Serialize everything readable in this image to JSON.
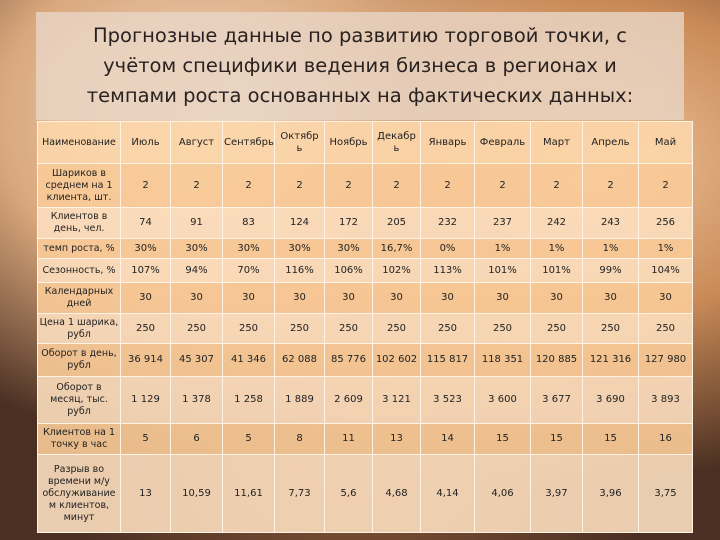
{
  "title": "Прогнозные данные по развитию торговой точки, с учётом специфики ведения бизнеса в регионах и темпами роста основанных на фактических данных:",
  "table": {
    "header": {
      "label": "Наименование",
      "months": [
        "Июль",
        "Август",
        "Сентябрь",
        "Октябр ь",
        "Ноябрь",
        "Декабр ь",
        "Январь",
        "Февраль",
        "Март",
        "Апрель",
        "Май"
      ]
    },
    "rows": [
      {
        "label": "Шариков в среднем на 1 клиента, шт.",
        "values": [
          "2",
          "2",
          "2",
          "2",
          "2",
          "2",
          "2",
          "2",
          "2",
          "2",
          "2"
        ]
      },
      {
        "label": "Клиентов в день, чел.",
        "values": [
          "74",
          "91",
          "83",
          "124",
          "172",
          "205",
          "232",
          "237",
          "242",
          "243",
          "256"
        ]
      },
      {
        "label": "темп роста, %",
        "values": [
          "30%",
          "30%",
          "30%",
          "30%",
          "30%",
          "16,7%",
          "0%",
          "1%",
          "1%",
          "1%",
          "1%"
        ]
      },
      {
        "label": "Сезонность, %",
        "values": [
          "107%",
          "94%",
          "70%",
          "116%",
          "106%",
          "102%",
          "113%",
          "101%",
          "101%",
          "99%",
          "104%"
        ]
      },
      {
        "label": "Календарных дней",
        "values": [
          "30",
          "30",
          "30",
          "30",
          "30",
          "30",
          "30",
          "30",
          "30",
          "30",
          "30"
        ]
      },
      {
        "label": "Цена 1 шарика, рубл",
        "values": [
          "250",
          "250",
          "250",
          "250",
          "250",
          "250",
          "250",
          "250",
          "250",
          "250",
          "250"
        ]
      },
      {
        "label": "Оборот в день, рубл",
        "values": [
          "36 914",
          "45 307",
          "41 346",
          "62 088",
          "85 776",
          "102 602",
          "115 817",
          "118 351",
          "120 885",
          "121 316",
          "127 980"
        ]
      },
      {
        "label": "Оборот в месяц, тыс. рубл",
        "values": [
          "1 129",
          "1 378",
          "1 258",
          "1 889",
          "2 609",
          "3 121",
          "3 523",
          "3 600",
          "3 677",
          "3 690",
          "3 893"
        ]
      },
      {
        "label": "Клиентов на 1 точку в час",
        "values": [
          "5",
          "6",
          "5",
          "8",
          "11",
          "13",
          "14",
          "15",
          "15",
          "15",
          "16"
        ]
      },
      {
        "label": "Разрыв во времени м/у обслуживание м клиентов, минут",
        "values": [
          "13",
          "10,59",
          "11,61",
          "7,73",
          "5,6",
          "4,68",
          "4,14",
          "4,06",
          "3,97",
          "3,96",
          "3,75"
        ]
      }
    ]
  }
}
